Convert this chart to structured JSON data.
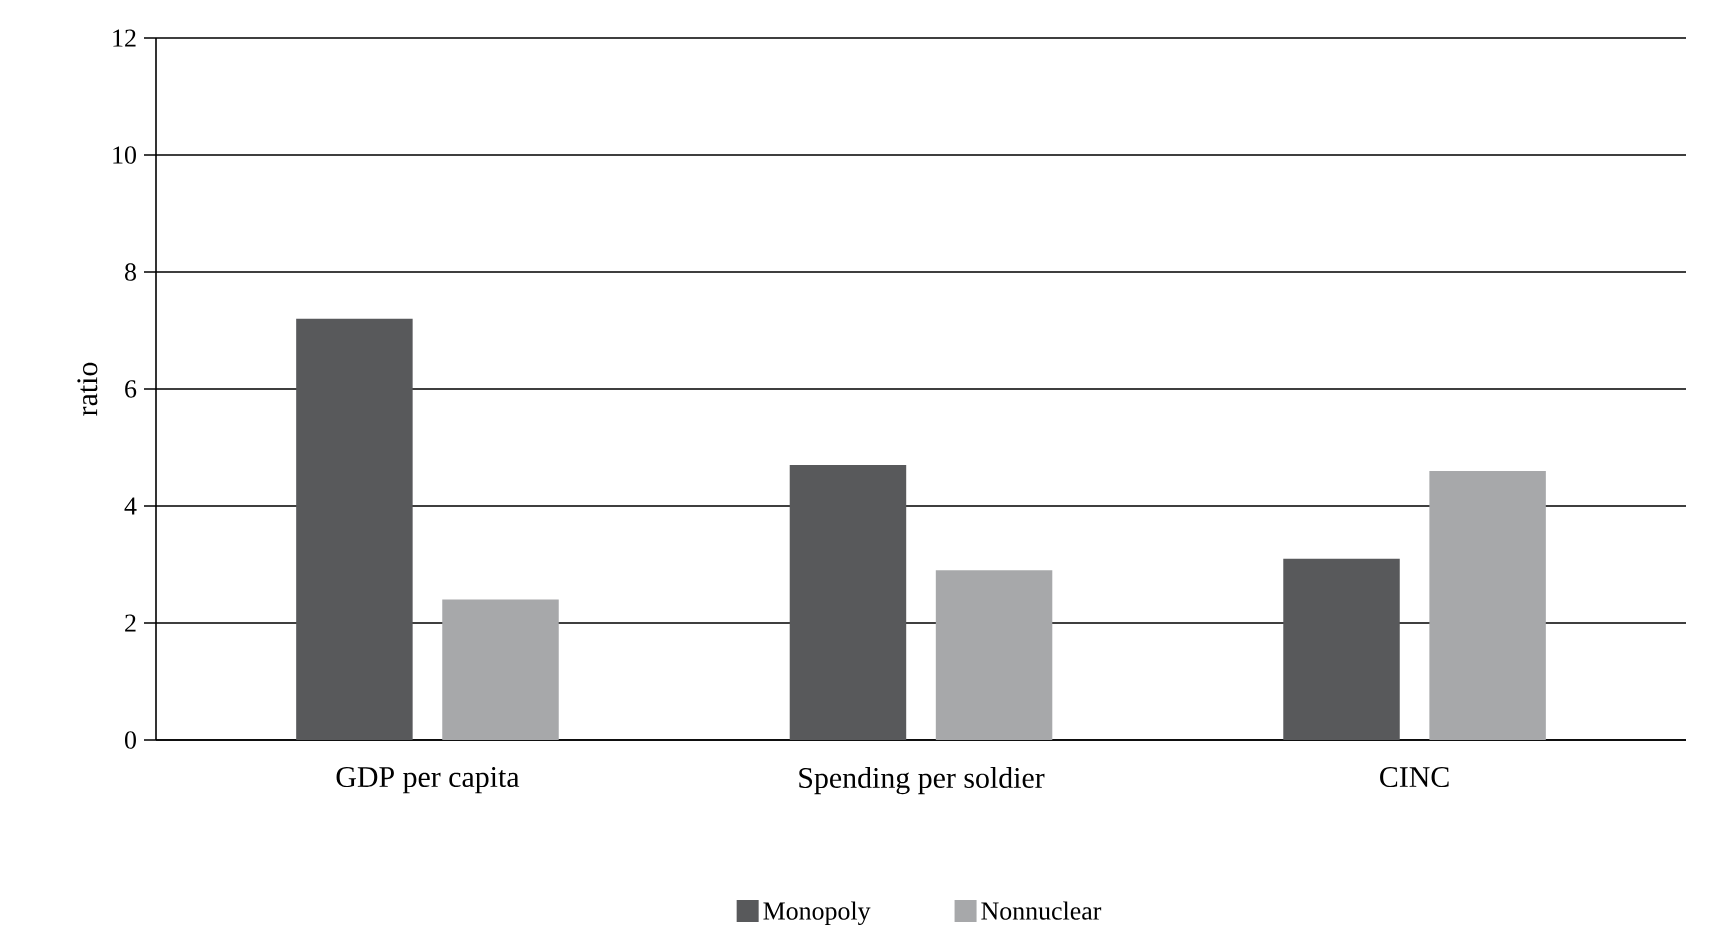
{
  "chart_data": {
    "type": "bar",
    "ylabel": "ratio",
    "categories": [
      "GDP per capita",
      "Spending per soldier",
      "CINC"
    ],
    "series": [
      {
        "name": "Monopoly",
        "color": "#58595b",
        "values": [
          7.2,
          4.7,
          3.1
        ]
      },
      {
        "name": "Nonnuclear",
        "color": "#a7a8aa",
        "values": [
          2.4,
          2.9,
          4.6
        ]
      }
    ],
    "ylim": [
      0,
      12
    ],
    "yticks": [
      0,
      2,
      4,
      6,
      8,
      10,
      12
    ],
    "grid": "y",
    "legend": "bottom"
  }
}
